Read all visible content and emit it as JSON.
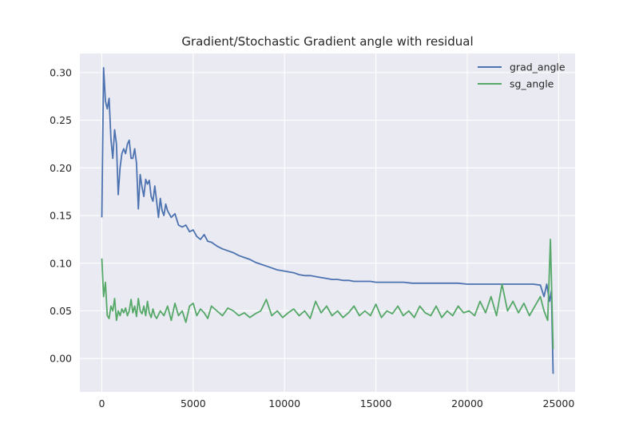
{
  "chart_data": {
    "type": "line",
    "title": "Gradient/Stochastic Gradient angle with residual",
    "xlabel": "",
    "ylabel": "",
    "xlim": [
      -1200,
      25900
    ],
    "ylim": [
      -0.035,
      0.32
    ],
    "x_ticks": [
      0,
      5000,
      10000,
      15000,
      20000,
      25000
    ],
    "x_tick_labels": [
      "0",
      "5000",
      "10000",
      "15000",
      "20000",
      "25000"
    ],
    "y_ticks": [
      0.0,
      0.05,
      0.1,
      0.15,
      0.2,
      0.25,
      0.3
    ],
    "y_tick_labels": [
      "0.00",
      "0.05",
      "0.10",
      "0.15",
      "0.20",
      "0.25",
      "0.30"
    ],
    "grid": true,
    "legend_position": "top-right",
    "colors": {
      "background": "#eaeaf2",
      "grid": "#ffffff",
      "grad_angle": "#4c72b0",
      "sg_angle": "#55a868"
    },
    "series": [
      {
        "name": "grad_angle",
        "color": "#4c72b0",
        "x": [
          0,
          100,
          200,
          300,
          400,
          500,
          600,
          700,
          800,
          900,
          1000,
          1100,
          1200,
          1300,
          1400,
          1500,
          1600,
          1700,
          1800,
          1900,
          2000,
          2100,
          2200,
          2300,
          2400,
          2500,
          2600,
          2700,
          2800,
          2900,
          3000,
          3100,
          3200,
          3300,
          3400,
          3500,
          3600,
          3800,
          4000,
          4200,
          4400,
          4600,
          4800,
          5000,
          5200,
          5400,
          5600,
          5800,
          6000,
          6300,
          6600,
          6900,
          7200,
          7500,
          7800,
          8100,
          8400,
          8700,
          9000,
          9300,
          9600,
          9900,
          10200,
          10500,
          10800,
          11100,
          11400,
          11700,
          12000,
          12300,
          12600,
          12900,
          13200,
          13500,
          13800,
          14100,
          14400,
          14700,
          15000,
          15500,
          16000,
          16500,
          17000,
          17500,
          18000,
          18500,
          19000,
          19500,
          20000,
          20400,
          20800,
          21200,
          21600,
          22000,
          22400,
          22800,
          23200,
          23600,
          24000,
          24200,
          24350,
          24500,
          24600,
          24700
        ],
        "y": [
          0.148,
          0.305,
          0.27,
          0.262,
          0.273,
          0.23,
          0.21,
          0.24,
          0.225,
          0.172,
          0.2,
          0.215,
          0.22,
          0.215,
          0.225,
          0.229,
          0.21,
          0.21,
          0.22,
          0.205,
          0.157,
          0.193,
          0.18,
          0.17,
          0.188,
          0.183,
          0.187,
          0.17,
          0.165,
          0.181,
          0.165,
          0.148,
          0.168,
          0.155,
          0.15,
          0.162,
          0.155,
          0.148,
          0.152,
          0.14,
          0.138,
          0.14,
          0.133,
          0.135,
          0.128,
          0.125,
          0.13,
          0.123,
          0.122,
          0.118,
          0.115,
          0.113,
          0.111,
          0.108,
          0.106,
          0.104,
          0.101,
          0.099,
          0.097,
          0.095,
          0.093,
          0.092,
          0.091,
          0.09,
          0.088,
          0.087,
          0.087,
          0.086,
          0.085,
          0.084,
          0.083,
          0.083,
          0.082,
          0.082,
          0.081,
          0.081,
          0.081,
          0.081,
          0.08,
          0.08,
          0.08,
          0.08,
          0.079,
          0.079,
          0.079,
          0.079,
          0.079,
          0.079,
          0.078,
          0.078,
          0.078,
          0.078,
          0.078,
          0.078,
          0.078,
          0.078,
          0.078,
          0.078,
          0.077,
          0.065,
          0.078,
          0.06,
          0.071,
          -0.016
        ]
      },
      {
        "name": "sg_angle",
        "color": "#55a868",
        "x": [
          0,
          100,
          200,
          300,
          400,
          500,
          600,
          700,
          800,
          900,
          1000,
          1100,
          1200,
          1300,
          1400,
          1500,
          1600,
          1700,
          1800,
          1900,
          2000,
          2100,
          2200,
          2300,
          2400,
          2500,
          2600,
          2700,
          2800,
          2900,
          3000,
          3200,
          3400,
          3600,
          3800,
          4000,
          4200,
          4400,
          4600,
          4800,
          5000,
          5200,
          5400,
          5600,
          5800,
          6000,
          6300,
          6600,
          6900,
          7200,
          7500,
          7800,
          8100,
          8400,
          8700,
          9000,
          9300,
          9600,
          9900,
          10200,
          10500,
          10800,
          11100,
          11400,
          11700,
          12000,
          12300,
          12600,
          12900,
          13200,
          13500,
          13800,
          14100,
          14400,
          14700,
          15000,
          15300,
          15600,
          15900,
          16200,
          16500,
          16800,
          17100,
          17400,
          17700,
          18000,
          18300,
          18600,
          18900,
          19200,
          19500,
          19800,
          20100,
          20400,
          20700,
          21000,
          21300,
          21600,
          21900,
          22200,
          22500,
          22800,
          23100,
          23400,
          23700,
          24000,
          24200,
          24400,
          24550,
          24700
        ],
        "y": [
          0.105,
          0.065,
          0.08,
          0.045,
          0.042,
          0.055,
          0.05,
          0.063,
          0.04,
          0.05,
          0.045,
          0.052,
          0.048,
          0.053,
          0.045,
          0.05,
          0.062,
          0.048,
          0.055,
          0.044,
          0.063,
          0.05,
          0.047,
          0.055,
          0.045,
          0.06,
          0.048,
          0.043,
          0.052,
          0.045,
          0.042,
          0.05,
          0.045,
          0.055,
          0.04,
          0.058,
          0.045,
          0.05,
          0.038,
          0.055,
          0.058,
          0.045,
          0.052,
          0.048,
          0.042,
          0.055,
          0.05,
          0.045,
          0.053,
          0.05,
          0.045,
          0.048,
          0.043,
          0.047,
          0.05,
          0.062,
          0.045,
          0.05,
          0.043,
          0.048,
          0.052,
          0.045,
          0.05,
          0.042,
          0.06,
          0.048,
          0.055,
          0.045,
          0.05,
          0.043,
          0.048,
          0.055,
          0.045,
          0.05,
          0.045,
          0.057,
          0.043,
          0.05,
          0.047,
          0.055,
          0.045,
          0.05,
          0.043,
          0.055,
          0.048,
          0.045,
          0.055,
          0.043,
          0.05,
          0.045,
          0.055,
          0.048,
          0.05,
          0.045,
          0.06,
          0.048,
          0.065,
          0.045,
          0.078,
          0.05,
          0.06,
          0.048,
          0.058,
          0.045,
          0.055,
          0.065,
          0.05,
          0.04,
          0.125,
          0.01
        ]
      }
    ]
  }
}
